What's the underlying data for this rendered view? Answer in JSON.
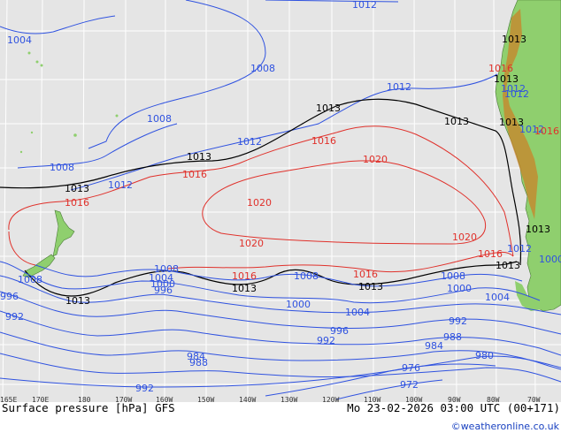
{
  "colors": {
    "sea": "#e5e5e5",
    "land": "#8fcf6e",
    "grid": "#ffffff",
    "isobar_low": "#2f52e0",
    "isobar_ref": "#000000",
    "isobar_high": "#e0312b",
    "credit": "#1840c0"
  },
  "map": {
    "title": "Surface pressure [hPa] GFS",
    "valid_time": "Mo 23-02-2026 03:00 UTC (00+171)",
    "credit": "©weatheronline.co.uk",
    "lon_labels": [
      "165E",
      "170E",
      "180",
      "170W",
      "160W",
      "150W",
      "140W",
      "130W",
      "120W",
      "110W",
      "100W",
      "90W",
      "80W",
      "70W"
    ],
    "isobar_labels": {
      "i1012_a": "1012",
      "i1004_a": "1004",
      "i1008_a": "1008",
      "i1012_b": "1012",
      "i1008_b": "1008",
      "i1012_c": "1012",
      "i1008_c": "1008",
      "i1012_d": "1012",
      "i1013_a": "1013",
      "i1013_b": "1013",
      "i1013_c": "1013",
      "i1013_d": "1013",
      "i1016_a": "1016",
      "i1016_b": "1016",
      "i1016_c": "1016",
      "i1020_a": "1020",
      "i1020_b": "1020",
      "i1020_c": "1020",
      "i1020_d": "1020",
      "i1016_d": "1016",
      "i1016_e": "1016",
      "i1016_f": "1016",
      "i1013_e": "1013",
      "i1013_f": "1013",
      "i1013_g": "1013",
      "i1013_h": "1013",
      "i1013_i": "1013",
      "i1013_j": "1013",
      "i1013_k": "1013",
      "i1012_e": "1012",
      "i1012_f": "1012",
      "i1008_d": "1008",
      "i1008_e": "1008",
      "i1008_f": "1008",
      "i1004_b": "1004",
      "i1004_c": "1004",
      "i1000_a": "1000",
      "i1000_b": "1000",
      "i1000_c": "1000",
      "i996_a": "996",
      "i996_b": "996",
      "i996_c": "996",
      "i992_a": "992",
      "i992_b": "992",
      "i992_c": "992",
      "i992_d": "992",
      "i988_a": "988",
      "i988_b": "988",
      "i984_a": "984",
      "i984_b": "984",
      "i980_a": "980",
      "i976_a": "976",
      "i972_a": "972",
      "i1008_g": "1008",
      "i1012_g": "1012",
      "i1016_g": "1016",
      "i1000_d": "1000",
      "i1016_h": "1016",
      "i1012_h": "1012",
      "i1013_l": "1013"
    }
  }
}
